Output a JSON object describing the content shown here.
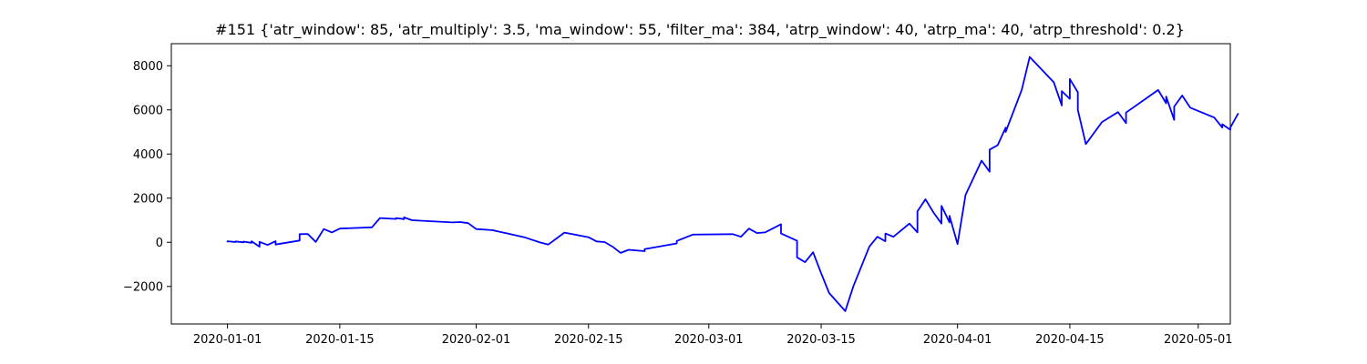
{
  "chart_data": {
    "type": "line",
    "title": "#151 {'atr_window': 85, 'atr_multiply': 3.5, 'ma_window': 55, 'filter_ma': 384, 'atrp_window': 40, 'atrp_ma': 40, 'atrp_threshold': 0.2}",
    "xlabel": "",
    "ylabel": "",
    "x_axis": "date",
    "xlim": [
      "2019-12-25",
      "2020-05-05"
    ],
    "ylim": [
      -3700,
      9000
    ],
    "grid": false,
    "x_ticks": [
      {
        "value": "2020-01-01",
        "label": "2020-01-01"
      },
      {
        "value": "2020-01-15",
        "label": "2020-01-15"
      },
      {
        "value": "2020-02-01",
        "label": "2020-02-01"
      },
      {
        "value": "2020-02-15",
        "label": "2020-02-15"
      },
      {
        "value": "2020-03-01",
        "label": "2020-03-01"
      },
      {
        "value": "2020-03-15",
        "label": "2020-03-15"
      },
      {
        "value": "2020-04-01",
        "label": "2020-04-01"
      },
      {
        "value": "2020-04-15",
        "label": "2020-04-15"
      },
      {
        "value": "2020-05-01",
        "label": "2020-05-01"
      }
    ],
    "y_ticks": [
      {
        "value": -2000,
        "label": "−2000"
      },
      {
        "value": 0,
        "label": "0"
      },
      {
        "value": 2000,
        "label": "2000"
      },
      {
        "value": 4000,
        "label": "4000"
      },
      {
        "value": 6000,
        "label": "6000"
      },
      {
        "value": 8000,
        "label": "8000"
      }
    ],
    "series": [
      {
        "color": "#0000ff",
        "points": [
          [
            "2020-01-01",
            0
          ],
          [
            "2020-01-01",
            50
          ],
          [
            "2020-01-02",
            10
          ],
          [
            "2020-01-02",
            40
          ],
          [
            "2020-01-03",
            0
          ],
          [
            "2020-01-03",
            30
          ],
          [
            "2020-01-04",
            -20
          ],
          [
            "2020-01-04",
            50
          ],
          [
            "2020-01-05",
            -200
          ],
          [
            "2020-01-05",
            20
          ],
          [
            "2020-01-06",
            -120
          ],
          [
            "2020-01-07",
            50
          ],
          [
            "2020-01-07",
            -100
          ],
          [
            "2020-01-10",
            80
          ],
          [
            "2020-01-10",
            370
          ],
          [
            "2020-01-11",
            380
          ],
          [
            "2020-01-12",
            20
          ],
          [
            "2020-01-13",
            600
          ],
          [
            "2020-01-14",
            450
          ],
          [
            "2020-01-15",
            620
          ],
          [
            "2020-01-19",
            680
          ],
          [
            "2020-01-20",
            1100
          ],
          [
            "2020-01-21",
            1080
          ],
          [
            "2020-01-22",
            1060
          ],
          [
            "2020-01-22",
            1100
          ],
          [
            "2020-01-23",
            1050
          ],
          [
            "2020-01-23",
            1130
          ],
          [
            "2020-01-24",
            1000
          ],
          [
            "2020-01-29",
            900
          ],
          [
            "2020-01-30",
            920
          ],
          [
            "2020-01-31",
            870
          ],
          [
            "2020-02-01",
            600
          ],
          [
            "2020-02-03",
            550
          ],
          [
            "2020-02-05",
            390
          ],
          [
            "2020-02-07",
            230
          ],
          [
            "2020-02-09",
            -10
          ],
          [
            "2020-02-10",
            -100
          ],
          [
            "2020-02-12",
            440
          ],
          [
            "2020-02-15",
            230
          ],
          [
            "2020-02-16",
            40
          ],
          [
            "2020-02-17",
            10
          ],
          [
            "2020-02-18",
            -200
          ],
          [
            "2020-02-19",
            -480
          ],
          [
            "2020-02-20",
            -340
          ],
          [
            "2020-02-22",
            -400
          ],
          [
            "2020-02-22",
            -310
          ],
          [
            "2020-02-26",
            -50
          ],
          [
            "2020-02-26",
            60
          ],
          [
            "2020-02-28",
            350
          ],
          [
            "2020-03-04",
            370
          ],
          [
            "2020-03-05",
            250
          ],
          [
            "2020-03-06",
            620
          ],
          [
            "2020-03-07",
            420
          ],
          [
            "2020-03-08",
            450
          ],
          [
            "2020-03-10",
            820
          ],
          [
            "2020-03-10",
            400
          ],
          [
            "2020-03-12",
            70
          ],
          [
            "2020-03-12",
            -680
          ],
          [
            "2020-03-13",
            -900
          ],
          [
            "2020-03-14",
            -450
          ],
          [
            "2020-03-15",
            -1400
          ],
          [
            "2020-03-16",
            -2300
          ],
          [
            "2020-03-18",
            -3120
          ],
          [
            "2020-03-19",
            -2000
          ],
          [
            "2020-03-21",
            -200
          ],
          [
            "2020-03-22",
            250
          ],
          [
            "2020-03-23",
            50
          ],
          [
            "2020-03-23",
            400
          ],
          [
            "2020-03-24",
            250
          ],
          [
            "2020-03-26",
            850
          ],
          [
            "2020-03-27",
            450
          ],
          [
            "2020-03-27",
            1400
          ],
          [
            "2020-03-28",
            1950
          ],
          [
            "2020-03-29",
            1350
          ],
          [
            "2020-03-30",
            850
          ],
          [
            "2020-03-30",
            1650
          ],
          [
            "2020-03-31",
            900
          ],
          [
            "2020-03-31",
            1200
          ],
          [
            "2020-04-01",
            -80
          ],
          [
            "2020-04-02",
            2150
          ],
          [
            "2020-04-04",
            3700
          ],
          [
            "2020-04-05",
            3200
          ],
          [
            "2020-04-05",
            4200
          ],
          [
            "2020-04-06",
            4400
          ],
          [
            "2020-04-07",
            5200
          ],
          [
            "2020-04-07",
            5000
          ],
          [
            "2020-04-09",
            6900
          ],
          [
            "2020-04-10",
            8400
          ],
          [
            "2020-04-13",
            7250
          ],
          [
            "2020-04-14",
            6200
          ],
          [
            "2020-04-14",
            6850
          ],
          [
            "2020-04-15",
            6500
          ],
          [
            "2020-04-15",
            7400
          ],
          [
            "2020-04-16",
            6800
          ],
          [
            "2020-04-16",
            6000
          ],
          [
            "2020-04-17",
            4450
          ],
          [
            "2020-04-19",
            5450
          ],
          [
            "2020-04-21",
            5900
          ],
          [
            "2020-04-22",
            5400
          ],
          [
            "2020-04-22",
            5880
          ],
          [
            "2020-04-26",
            6900
          ],
          [
            "2020-04-27",
            6300
          ],
          [
            "2020-04-27",
            6600
          ],
          [
            "2020-04-28",
            5550
          ],
          [
            "2020-04-28",
            6150
          ],
          [
            "2020-04-29",
            6650
          ],
          [
            "2020-04-30",
            6100
          ],
          [
            "2020-05-03",
            5650
          ],
          [
            "2020-05-04",
            5200
          ],
          [
            "2020-05-04",
            5350
          ],
          [
            "2020-05-05",
            5100
          ],
          [
            "2020-05-05",
            5200
          ],
          [
            "2020-05-06",
            5850
          ]
        ]
      }
    ]
  }
}
